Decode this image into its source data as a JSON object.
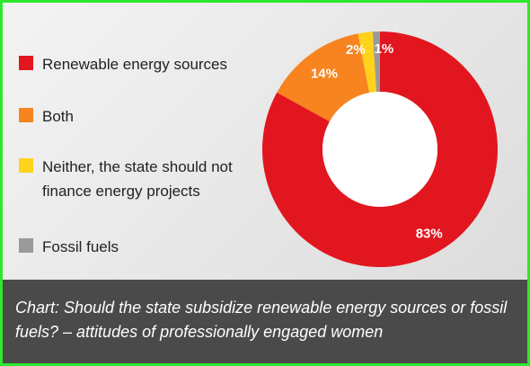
{
  "chart_data": {
    "type": "pie",
    "variant": "donut",
    "title": "Chart: Should the state subsidize renewable energy sources or fossil fuels? – attitudes of professionally engaged women",
    "legend_position": "left",
    "slices": [
      {
        "label": "Renewable energy sources",
        "value": 83,
        "display": "83%",
        "color": "#e2161f"
      },
      {
        "label": "Both",
        "value": 14,
        "display": "14%",
        "color": "#f7841f"
      },
      {
        "label": "Neither, the state should not finance energy projects",
        "value": 2,
        "display": "2%",
        "color": "#ffd21c"
      },
      {
        "label": "Fossil fuels",
        "value": 1,
        "display": "1%",
        "color": "#9a9a9a"
      }
    ]
  }
}
